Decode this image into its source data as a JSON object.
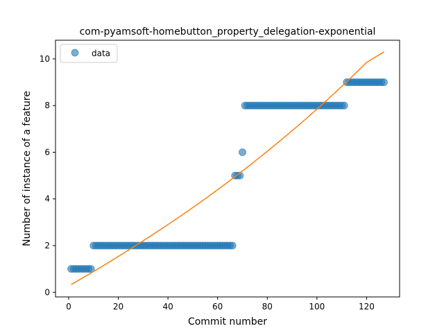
{
  "chart_data": {
    "type": "scatter",
    "title": "com-pyamsoft-homebutton_property_delegation-exponential",
    "xlabel": "Commit number",
    "ylabel": "Number of instance of a feature",
    "xlim": [
      -5.3,
      133.3
    ],
    "ylim": [
      -0.2,
      10.8
    ],
    "xticks": [
      0,
      20,
      40,
      60,
      80,
      100,
      120
    ],
    "yticks": [
      0,
      2,
      4,
      6,
      8,
      10
    ],
    "grid": false,
    "legend": {
      "position": "top-left",
      "entries": [
        "data"
      ]
    },
    "colors": {
      "data": "#1f77b4",
      "fit": "#ff7f0e"
    },
    "series": [
      {
        "name": "data",
        "kind": "points",
        "segments": [
          {
            "x_from": 1,
            "x_to": 9,
            "y": 1
          },
          {
            "x_from": 10,
            "x_to": 66,
            "y": 2
          },
          {
            "x_from": 67,
            "x_to": 69,
            "y": 5
          },
          {
            "x_from": 70,
            "x_to": 70,
            "y": 6
          },
          {
            "x_from": 71,
            "x_to": 111,
            "y": 8
          },
          {
            "x_from": 112,
            "x_to": 127,
            "y": 9
          }
        ]
      },
      {
        "kind": "fit-line",
        "x": [
          1,
          8,
          16,
          24,
          32,
          40,
          48,
          56,
          64,
          72,
          80,
          88,
          96,
          104,
          112,
          120,
          127
        ],
        "y": [
          0.33,
          0.76,
          1.27,
          1.8,
          2.34,
          2.9,
          3.48,
          4.08,
          4.71,
          5.36,
          6.04,
          6.74,
          7.47,
          8.23,
          9.02,
          9.85,
          10.3
        ]
      }
    ]
  }
}
